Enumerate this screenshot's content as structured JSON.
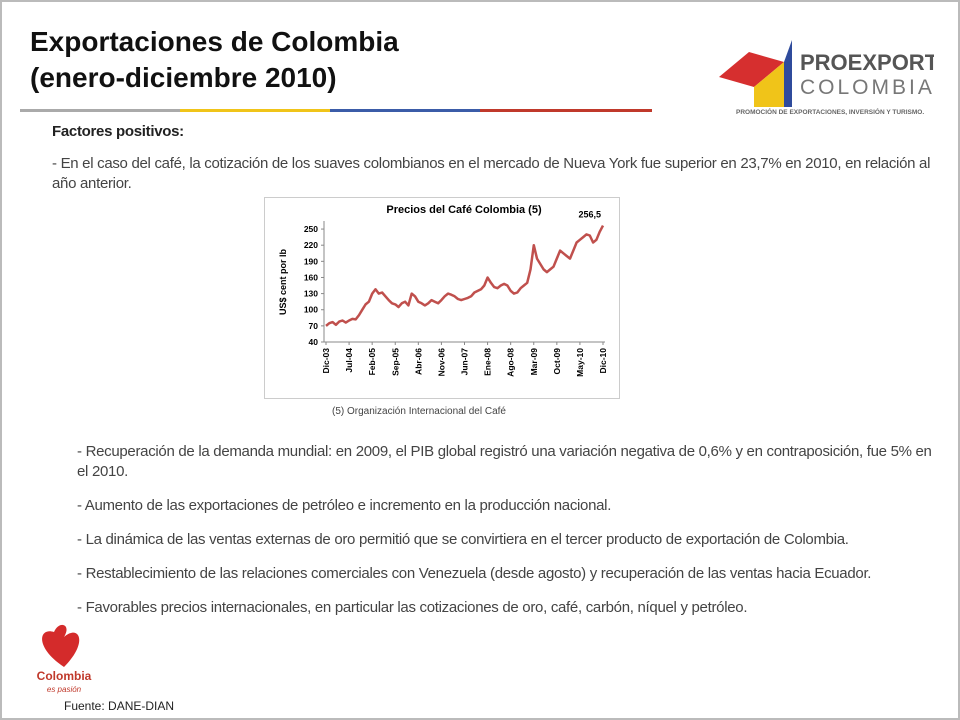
{
  "header": {
    "title_line1": "Exportaciones de Colombia",
    "title_line2": "(enero-diciembre 2010)"
  },
  "logo": {
    "name1": "PROEXPORT",
    "name2": "COLOMBIA",
    "tagline": "PROMOCIÓN DE EXPORTACIONES, INVERSIÓN Y TURISMO."
  },
  "body": {
    "heading": "Factores positivos:",
    "intro": "- En el caso del café, la cotización de los suaves colombianos en el mercado de Nueva York fue superior en 23,7% en 2010, en relación al año anterior.",
    "chart_note": "(5) Organización Internacional del Café",
    "bullets": [
      "- Recuperación de la demanda mundial: en 2009, el PIB global registró una variación negativa de 0,6% y en contraposición, fue 5% en el 2010.",
      "-  Aumento de las exportaciones de petróleo e incremento en la producción nacional.",
      "- La dinámica de las ventas externas de oro permitió que se convirtiera en el tercer producto de exportación de Colombia.",
      "- Restablecimiento de las relaciones comerciales con Venezuela (desde agosto) y recuperación de las ventas hacia Ecuador.",
      "- Favorables precios internacionales, en particular las cotizaciones de oro, café, carbón, níquel y petróleo."
    ],
    "source": "Fuente: DANE-DIAN"
  },
  "brand": {
    "name": "Colombia",
    "slogan": "es pasión"
  },
  "chart_data": {
    "type": "line",
    "title": "Precios del Café Colombia (5)",
    "y_label": "US$ cent por lb",
    "color": "#c0504d",
    "categories": [
      "Dic-03",
      null,
      null,
      null,
      null,
      null,
      null,
      "Jul-04",
      null,
      null,
      null,
      null,
      null,
      null,
      "Feb-05",
      null,
      null,
      null,
      null,
      null,
      null,
      "Sep-05",
      null,
      null,
      null,
      null,
      null,
      null,
      "Abr-06",
      null,
      null,
      null,
      null,
      null,
      null,
      "Nov-06",
      null,
      null,
      null,
      null,
      null,
      null,
      "Jun-07",
      null,
      null,
      null,
      null,
      null,
      null,
      "Ene-08",
      null,
      null,
      null,
      null,
      null,
      null,
      "Ago-08",
      null,
      null,
      null,
      null,
      null,
      null,
      "Mar-09",
      null,
      null,
      null,
      null,
      null,
      null,
      "Oct-09",
      null,
      null,
      null,
      null,
      null,
      null,
      "May-10",
      null,
      null,
      null,
      null,
      null,
      null,
      "Dic-10"
    ],
    "values": [
      70,
      75,
      77,
      72,
      78,
      80,
      76,
      80,
      83,
      82,
      90,
      100,
      110,
      115,
      130,
      138,
      130,
      132,
      125,
      118,
      112,
      110,
      105,
      112,
      115,
      108,
      130,
      125,
      115,
      112,
      108,
      112,
      118,
      115,
      112,
      118,
      125,
      130,
      128,
      125,
      120,
      118,
      120,
      122,
      125,
      132,
      135,
      138,
      145,
      160,
      150,
      142,
      140,
      145,
      148,
      145,
      135,
      130,
      132,
      140,
      145,
      150,
      175,
      220,
      195,
      185,
      175,
      170,
      175,
      180,
      195,
      210,
      205,
      200,
      195,
      210,
      225,
      230,
      235,
      240,
      238,
      225,
      230,
      245,
      256.5
    ],
    "value_labels": [
      null,
      null,
      null,
      null,
      null,
      null,
      null,
      null,
      null,
      null,
      null,
      null,
      null,
      null,
      null,
      null,
      null,
      null,
      null,
      null,
      null,
      null,
      null,
      null,
      null,
      null,
      null,
      null,
      null,
      null,
      null,
      null,
      null,
      null,
      null,
      null,
      null,
      null,
      null,
      null,
      null,
      null,
      null,
      null,
      null,
      null,
      null,
      null,
      null,
      null,
      null,
      null,
      null,
      null,
      null,
      null,
      null,
      null,
      null,
      null,
      null,
      null,
      null,
      null,
      null,
      null,
      null,
      null,
      null,
      null,
      null,
      null,
      null,
      null,
      null,
      null,
      null,
      null,
      null,
      null,
      null,
      null,
      null,
      null,
      "256,5"
    ],
    "ylim": [
      40,
      265
    ],
    "yticks": [
      40,
      70,
      100,
      130,
      160,
      190,
      220,
      250
    ]
  }
}
